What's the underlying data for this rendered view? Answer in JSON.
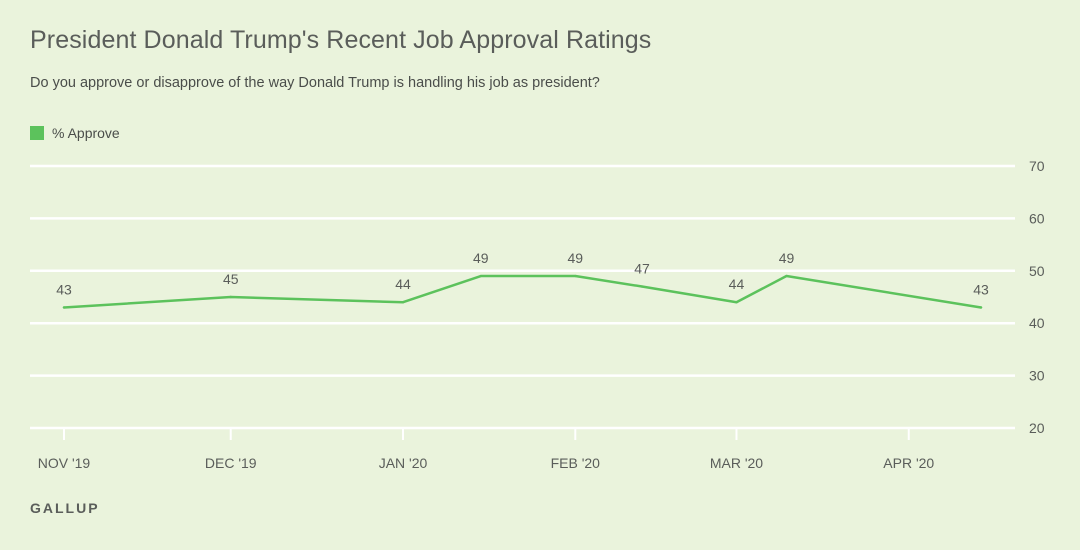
{
  "chart_data": {
    "type": "line",
    "title": "President Donald Trump's Recent Job Approval Ratings",
    "subtitle": "Do you approve or disapprove of the way Donald Trump is handling his job as president?",
    "xlabel": "",
    "ylabel": "",
    "ylim": [
      20,
      70
    ],
    "yticks": [
      20,
      30,
      40,
      50,
      60,
      70
    ],
    "grid": true,
    "legend_position": "top-left",
    "x_tick_labels": [
      "NOV '19",
      "DEC '19",
      "JAN '20",
      "FEB '20",
      "MAR '20",
      "APR '20"
    ],
    "x_tick_days": [
      0,
      30,
      61,
      92,
      121,
      152
    ],
    "x_range_days": [
      0,
      165
    ],
    "series": [
      {
        "name": "% Approve",
        "color": "#5cc25c",
        "x_days": [
          0,
          30,
          61,
          75,
          92,
          104,
          121,
          130,
          165
        ],
        "values": [
          43,
          45,
          44,
          49,
          49,
          47,
          44,
          49,
          43
        ]
      }
    ]
  },
  "source": "GALLUP"
}
